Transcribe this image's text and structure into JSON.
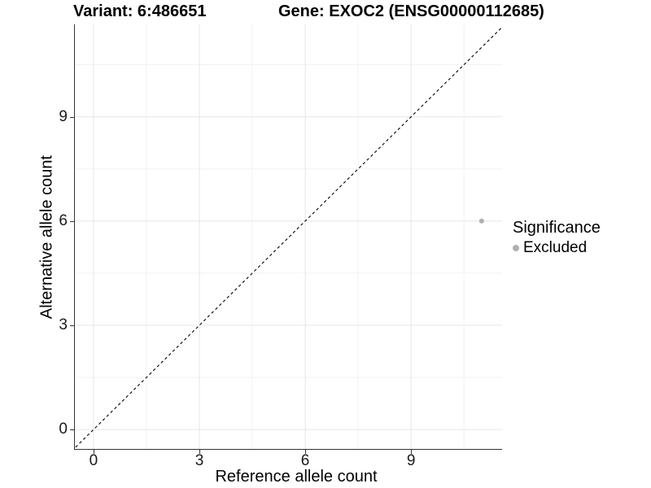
{
  "chart_data": {
    "type": "scatter",
    "variant_title": "Variant: 6:486651",
    "gene_title": "Gene: EXOC2 (ENSG00000112685)",
    "xlabel": "Reference allele count",
    "ylabel": "Alternative allele count",
    "xlim": [
      -0.53,
      11.58
    ],
    "ylim": [
      -0.56,
      11.66
    ],
    "x_ticks": [
      0,
      3,
      6,
      9
    ],
    "y_ticks": [
      0,
      3,
      6,
      9
    ],
    "x_minor_ticks": [
      1.5,
      4.5,
      7.5,
      10.5
    ],
    "y_minor_ticks": [
      1.5,
      4.5,
      7.5,
      10.5
    ],
    "grid": true,
    "colors": {
      "major_grid": "#e6e6e6",
      "minor_grid": "#f2f2f2",
      "axis_line": "#333333",
      "identity_line": "#000000",
      "excluded_point": "#b0b0b0"
    },
    "identity_line": {
      "equation": "y = x",
      "slope": 1,
      "intercept": 0,
      "style": "dashed"
    },
    "legend": {
      "title": "Significance",
      "position": "right",
      "items": [
        {
          "label": "Excluded",
          "color": "#b0b0b0"
        }
      ]
    },
    "series": [
      {
        "name": "Excluded",
        "color": "#b0b0b0",
        "points": [
          {
            "x": 11,
            "y": 6
          }
        ]
      }
    ]
  }
}
